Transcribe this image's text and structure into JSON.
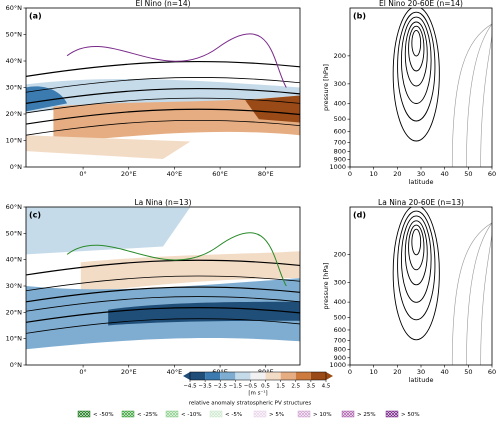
{
  "chart_data": [
    {
      "type": "map",
      "title": "El Nino (n=14)",
      "panel_label": "(a)",
      "xlim": [
        -25,
        95
      ],
      "ylim": [
        0,
        60
      ],
      "xticks": [
        {
          "value": 0,
          "label": "0°"
        },
        {
          "value": 20,
          "label": "20°E"
        },
        {
          "value": 40,
          "label": "40°E"
        },
        {
          "value": 60,
          "label": "60°E"
        },
        {
          "value": 80,
          "label": "80°E"
        }
      ],
      "yticks": [
        {
          "value": 0,
          "label": "0°N"
        },
        {
          "value": 10,
          "label": "10°N"
        },
        {
          "value": 20,
          "label": "20°N"
        },
        {
          "value": 30,
          "label": "30°N"
        },
        {
          "value": 40,
          "label": "40°N"
        },
        {
          "value": 50,
          "label": "50°N"
        },
        {
          "value": 60,
          "label": "60°N"
        }
      ]
    },
    {
      "type": "cross_section",
      "title": "El Nino 20-60E (n=14)",
      "panel_label": "(b)",
      "xlabel": "latitude",
      "ylabel": "pressure [hPa]",
      "xlim": [
        0,
        60
      ],
      "ylim": [
        1000,
        100
      ],
      "log_y": true,
      "xticks": [
        0,
        10,
        20,
        30,
        40,
        50,
        60
      ],
      "yticks": [
        200,
        300,
        400,
        500,
        600,
        700,
        800,
        900,
        1000
      ]
    },
    {
      "type": "map",
      "title": "La Nina (n=13)",
      "panel_label": "(c)",
      "xlim": [
        -25,
        95
      ],
      "ylim": [
        0,
        60
      ],
      "xticks": [
        {
          "value": 0,
          "label": "0°"
        },
        {
          "value": 20,
          "label": "20°E"
        },
        {
          "value": 40,
          "label": "40°E"
        },
        {
          "value": 60,
          "label": "60°E"
        },
        {
          "value": 80,
          "label": "80°E"
        }
      ],
      "yticks": [
        {
          "value": 0,
          "label": "0°N"
        },
        {
          "value": 10,
          "label": "10°N"
        },
        {
          "value": 20,
          "label": "20°N"
        },
        {
          "value": 30,
          "label": "30°N"
        },
        {
          "value": 40,
          "label": "40°N"
        },
        {
          "value": 50,
          "label": "50°N"
        },
        {
          "value": 60,
          "label": "60°N"
        }
      ]
    },
    {
      "type": "cross_section",
      "title": "La Nina 20-60E (n=13)",
      "panel_label": "(d)",
      "xlabel": "latitude",
      "ylabel": "pressure [hPa]",
      "xlim": [
        0,
        60
      ],
      "ylim": [
        1000,
        100
      ],
      "log_y": true,
      "xticks": [
        0,
        10,
        20,
        30,
        40,
        50,
        60
      ],
      "yticks": [
        200,
        300,
        400,
        500,
        600,
        700,
        800,
        900,
        1000
      ]
    }
  ],
  "colorbar": {
    "unit": "[m s⁻¹]",
    "ticks": [
      {
        "value": -4.5,
        "label": "−4.5"
      },
      {
        "value": -3.5,
        "label": "−3.5"
      },
      {
        "value": -2.5,
        "label": "−2.5"
      },
      {
        "value": -1.5,
        "label": "−1.5"
      },
      {
        "value": -0.5,
        "label": "−0.5"
      },
      0.5,
      1.5,
      2.5,
      3.5,
      4.5
    ],
    "colors": [
      "#1f4e79",
      "#3b7bb0",
      "#7fadd1",
      "#c6dbea",
      "#f2f2f2",
      "#f3dcc6",
      "#e6ad82",
      "#cc7a3e",
      "#9a4a16"
    ]
  },
  "legend": {
    "title": "relative anomaly stratospheric PV structures",
    "entries": [
      {
        "label": "< -50%",
        "color": "#1f7a1f"
      },
      {
        "label": "< -25%",
        "color": "#3fa33f"
      },
      {
        "label": "< -10%",
        "color": "#8fcf8f"
      },
      {
        "label": "< -5%",
        "color": "#cfe9cf"
      },
      {
        "label": "> 5%",
        "color": "#ead6ea"
      },
      {
        "label": "> 10%",
        "color": "#d3a6d3"
      },
      {
        "label": "> 25%",
        "color": "#b06ab0"
      },
      {
        "label": "> 50%",
        "color": "#7a2a8a"
      }
    ]
  }
}
